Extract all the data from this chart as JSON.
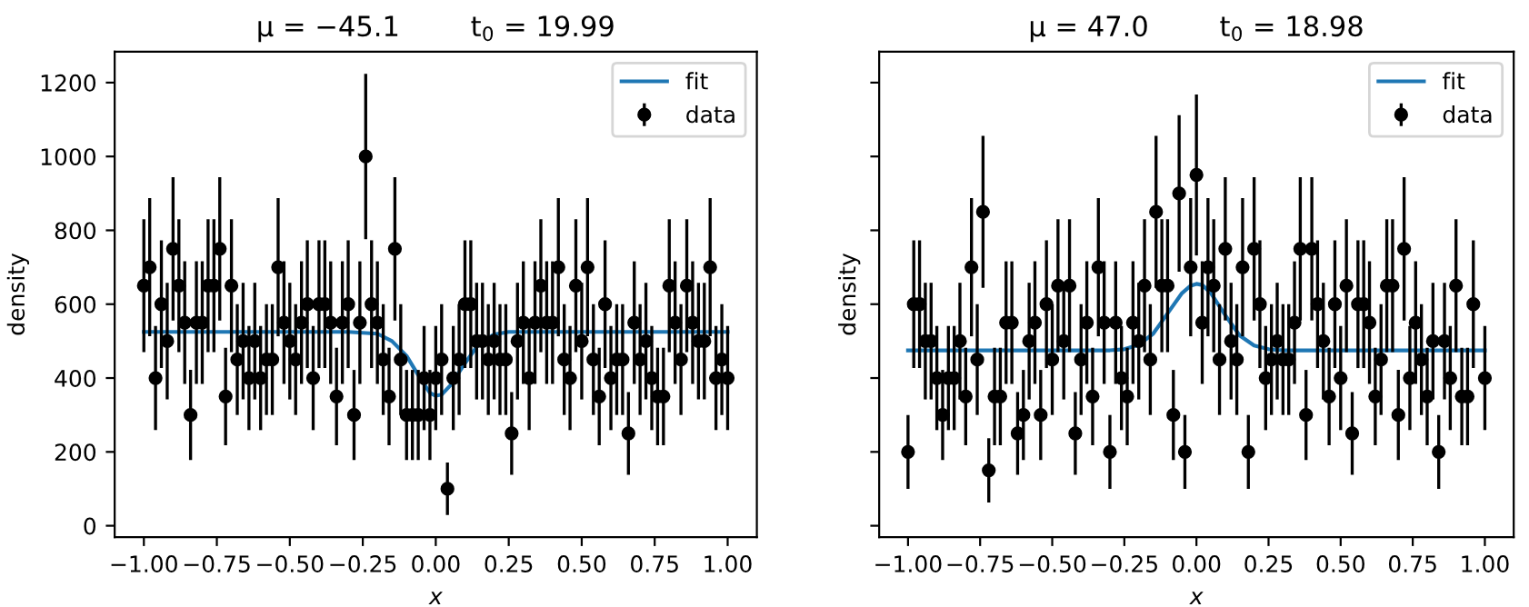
{
  "chart_data": [
    {
      "type": "scatter",
      "title": "μ = −45.1        t$_{0}$ = 19.99",
      "xlabel": "x",
      "ylabel": "density",
      "xlim": [
        -1.1,
        1.1
      ],
      "ylim": [
        -31,
        1284
      ],
      "xticks": [
        {
          "value": -1,
          "label": "−1.00"
        },
        {
          "value": -0.75,
          "label": "−0.75"
        },
        {
          "value": -0.5,
          "label": "−0.50"
        },
        {
          "value": -0.25,
          "label": "−0.25"
        },
        {
          "value": 0,
          "label": "0.00"
        },
        {
          "value": 0.25,
          "label": "0.25"
        },
        {
          "value": 0.5,
          "label": "0.50"
        },
        {
          "value": 0.75,
          "label": "0.75"
        },
        {
          "value": 1,
          "label": "1.00"
        }
      ],
      "yticks": [
        0,
        200,
        400,
        600,
        800,
        1000,
        1200
      ],
      "grid": false,
      "legend": "top right",
      "series": [
        {
          "name": "fit",
          "type": "line",
          "color": "#1f77b4",
          "marker": "none",
          "x": [
            -1,
            -0.3,
            -0.2,
            -0.15,
            -0.1,
            -0.05,
            -0.02,
            0,
            0.02,
            0.05,
            0.1,
            0.15,
            0.2,
            0.25,
            0.3,
            1
          ],
          "values": [
            525,
            525,
            520,
            500,
            460,
            395,
            360,
            352,
            355,
            380,
            440,
            495,
            518,
            525,
            525,
            525
          ]
        },
        {
          "name": "data",
          "color": "#000000",
          "marker": "circle",
          "x": [
            -1,
            -0.98,
            -0.96,
            -0.94,
            -0.92,
            -0.9,
            -0.88,
            -0.86,
            -0.84,
            -0.82,
            -0.8,
            -0.78,
            -0.76,
            -0.74,
            -0.72,
            -0.7,
            -0.68,
            -0.66,
            -0.64,
            -0.62,
            -0.6,
            -0.58,
            -0.56,
            -0.54,
            -0.52,
            -0.5,
            -0.48,
            -0.46,
            -0.44,
            -0.42,
            -0.4,
            -0.38,
            -0.36,
            -0.34,
            -0.32,
            -0.3,
            -0.28,
            -0.26,
            -0.24,
            -0.22,
            -0.2,
            -0.18,
            -0.16,
            -0.14,
            -0.12,
            -0.1,
            -0.08,
            -0.06,
            -0.04,
            -0.02,
            0,
            0.02,
            0.04,
            0.06,
            0.08,
            0.1,
            0.12,
            0.14,
            0.16,
            0.18,
            0.2,
            0.22,
            0.24,
            0.26,
            0.28,
            0.3,
            0.32,
            0.34,
            0.36,
            0.38,
            0.4,
            0.42,
            0.44,
            0.46,
            0.48,
            0.5,
            0.52,
            0.54,
            0.56,
            0.58,
            0.6,
            0.62,
            0.64,
            0.66,
            0.68,
            0.7,
            0.72,
            0.74,
            0.76,
            0.78,
            0.8,
            0.82,
            0.84,
            0.86,
            0.88,
            0.9,
            0.92,
            0.94,
            0.96,
            0.98,
            1
          ],
          "values": [
            650,
            700,
            400,
            600,
            500,
            750,
            650,
            550,
            300,
            550,
            550,
            650,
            650,
            750,
            350,
            650,
            450,
            500,
            400,
            500,
            400,
            450,
            450,
            700,
            550,
            500,
            450,
            550,
            600,
            400,
            600,
            600,
            550,
            350,
            550,
            600,
            300,
            550,
            1000,
            600,
            550,
            450,
            350,
            750,
            450,
            300,
            300,
            300,
            400,
            300,
            400,
            450,
            100,
            400,
            450,
            600,
            600,
            500,
            500,
            450,
            500,
            450,
            450,
            250,
            500,
            550,
            400,
            550,
            650,
            550,
            550,
            700,
            450,
            400,
            650,
            500,
            700,
            450,
            350,
            600,
            400,
            450,
            450,
            250,
            550,
            450,
            500,
            400,
            350,
            350,
            650,
            550,
            450,
            650,
            550,
            500,
            500,
            700,
            400,
            450,
            400
          ],
          "errors": [
            180,
            187,
            141,
            173,
            158,
            194,
            180,
            166,
            122,
            166,
            166,
            180,
            180,
            194,
            132,
            180,
            150,
            158,
            141,
            158,
            141,
            150,
            150,
            187,
            166,
            158,
            150,
            166,
            173,
            141,
            173,
            173,
            166,
            132,
            166,
            173,
            122,
            166,
            224,
            173,
            166,
            150,
            132,
            194,
            150,
            122,
            122,
            122,
            141,
            122,
            141,
            150,
            71,
            141,
            150,
            173,
            173,
            158,
            158,
            150,
            158,
            150,
            150,
            112,
            158,
            166,
            141,
            166,
            180,
            166,
            166,
            187,
            150,
            141,
            180,
            158,
            187,
            150,
            132,
            173,
            141,
            150,
            150,
            112,
            166,
            150,
            158,
            141,
            132,
            132,
            180,
            166,
            150,
            180,
            166,
            158,
            158,
            187,
            141,
            150,
            141
          ]
        }
      ]
    },
    {
      "type": "scatter",
      "title": "μ = 47.0        t$_{0}$ = 18.98",
      "xlabel": "x",
      "ylabel": "density",
      "xlim": [
        -1.1,
        1.1
      ],
      "ylim": [
        -31,
        1284
      ],
      "xticks": [
        {
          "value": -1,
          "label": "−1.00"
        },
        {
          "value": -0.75,
          "label": "−0.75"
        },
        {
          "value": -0.5,
          "label": "−0.50"
        },
        {
          "value": -0.25,
          "label": "−0.25"
        },
        {
          "value": 0,
          "label": "0.00"
        },
        {
          "value": 0.25,
          "label": "0.25"
        },
        {
          "value": 0.5,
          "label": "0.50"
        },
        {
          "value": 0.75,
          "label": "0.75"
        },
        {
          "value": 1,
          "label": "1.00"
        }
      ],
      "yticks": [
        {
          "value": 0,
          "label": null
        },
        {
          "value": 200,
          "label": null
        },
        {
          "value": 400,
          "label": null
        },
        {
          "value": 600,
          "label": null
        },
        {
          "value": 800,
          "label": null
        },
        {
          "value": 1000,
          "label": null
        },
        {
          "value": 1200,
          "label": null
        }
      ],
      "tick_labels": "x",
      "grid": false,
      "legend": "top right",
      "series": [
        {
          "name": "fit",
          "type": "line",
          "color": "#1f77b4",
          "marker": "none",
          "x": [
            -1,
            -0.3,
            -0.25,
            -0.2,
            -0.15,
            -0.1,
            -0.05,
            -0.02,
            0,
            0.02,
            0.05,
            0.1,
            0.15,
            0.2,
            0.25,
            0.3,
            1
          ],
          "values": [
            475,
            475,
            478,
            490,
            520,
            575,
            630,
            650,
            655,
            652,
            630,
            570,
            515,
            488,
            478,
            475,
            475
          ]
        },
        {
          "name": "data",
          "color": "#000000",
          "marker": "circle",
          "x": [
            -1,
            -0.98,
            -0.96,
            -0.94,
            -0.92,
            -0.9,
            -0.88,
            -0.86,
            -0.84,
            -0.82,
            -0.8,
            -0.78,
            -0.76,
            -0.74,
            -0.72,
            -0.7,
            -0.68,
            -0.66,
            -0.64,
            -0.62,
            -0.6,
            -0.58,
            -0.56,
            -0.54,
            -0.52,
            -0.5,
            -0.48,
            -0.46,
            -0.44,
            -0.42,
            -0.4,
            -0.38,
            -0.36,
            -0.34,
            -0.32,
            -0.3,
            -0.28,
            -0.26,
            -0.24,
            -0.22,
            -0.2,
            -0.18,
            -0.16,
            -0.14,
            -0.12,
            -0.1,
            -0.08,
            -0.06,
            -0.04,
            -0.02,
            0,
            0.02,
            0.04,
            0.06,
            0.08,
            0.1,
            0.12,
            0.14,
            0.16,
            0.18,
            0.2,
            0.22,
            0.24,
            0.26,
            0.28,
            0.3,
            0.32,
            0.34,
            0.36,
            0.38,
            0.4,
            0.42,
            0.44,
            0.46,
            0.48,
            0.5,
            0.52,
            0.54,
            0.56,
            0.58,
            0.6,
            0.62,
            0.64,
            0.66,
            0.68,
            0.7,
            0.72,
            0.74,
            0.76,
            0.78,
            0.8,
            0.82,
            0.84,
            0.86,
            0.88,
            0.9,
            0.92,
            0.94,
            0.96,
            1
          ],
          "values": [
            200,
            600,
            600,
            500,
            500,
            400,
            300,
            400,
            400,
            500,
            350,
            700,
            450,
            850,
            150,
            350,
            350,
            550,
            550,
            250,
            300,
            500,
            550,
            300,
            600,
            450,
            650,
            500,
            650,
            250,
            450,
            550,
            350,
            700,
            550,
            200,
            550,
            400,
            350,
            550,
            500,
            650,
            450,
            850,
            650,
            650,
            300,
            900,
            200,
            700,
            950,
            550,
            700,
            650,
            450,
            750,
            500,
            450,
            700,
            200,
            750,
            600,
            400,
            450,
            500,
            450,
            450,
            550,
            750,
            300,
            750,
            600,
            500,
            350,
            600,
            400,
            650,
            250,
            600,
            600,
            550,
            350,
            450,
            650,
            650,
            300,
            750,
            400,
            550,
            450,
            350,
            500,
            200,
            500,
            400,
            650,
            350,
            350,
            600,
            400
          ],
          "errors": [
            100,
            173,
            173,
            158,
            158,
            141,
            122,
            141,
            141,
            158,
            132,
            187,
            150,
            206,
            87,
            132,
            132,
            166,
            166,
            112,
            122,
            158,
            166,
            122,
            173,
            150,
            180,
            158,
            180,
            112,
            150,
            166,
            132,
            187,
            166,
            100,
            166,
            141,
            132,
            166,
            158,
            180,
            150,
            206,
            180,
            180,
            122,
            212,
            100,
            187,
            218,
            166,
            187,
            180,
            150,
            194,
            158,
            150,
            187,
            100,
            194,
            173,
            141,
            150,
            158,
            150,
            150,
            166,
            194,
            122,
            194,
            173,
            158,
            132,
            173,
            141,
            180,
            112,
            173,
            173,
            166,
            132,
            150,
            180,
            180,
            122,
            194,
            141,
            166,
            150,
            132,
            158,
            100,
            158,
            141,
            180,
            132,
            132,
            173,
            141
          ]
        }
      ]
    }
  ]
}
